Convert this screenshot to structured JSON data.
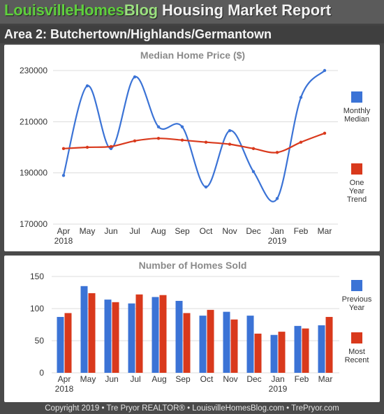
{
  "header": {
    "brand_part1": "LouisvilleHomes",
    "brand_part2": "Blog",
    "report_title": "Housing Market Report",
    "area_title": "Area 2: Butchertown/Highlands/Germantown"
  },
  "colors": {
    "blue": "#3b73d6",
    "red": "#d9391c",
    "title_gray": "#8a8a8a",
    "grid": "#dcdcdc"
  },
  "chart_data": [
    {
      "type": "line",
      "title": "Median Home Price ($)",
      "categories": [
        "Apr",
        "May",
        "Jun",
        "Jul",
        "Aug",
        "Sep",
        "Oct",
        "Nov",
        "Dec",
        "Jan",
        "Feb",
        "Mar"
      ],
      "year_labels": [
        {
          "category_index": 0,
          "label": "2018"
        },
        {
          "category_index": 9,
          "label": "2019"
        }
      ],
      "y_ticks": [
        "230000",
        "210000",
        "190000",
        "170000"
      ],
      "ylim": [
        170000,
        230000
      ],
      "grid": true,
      "legend_position": "right",
      "series": [
        {
          "name": "Monthly Median",
          "legend_lines": [
            "Monthly",
            "Median"
          ],
          "color": "#3b73d6",
          "smooth": true,
          "values": [
            189000,
            224000,
            199500,
            227500,
            208000,
            208000,
            184500,
            206500,
            190500,
            180000,
            219500,
            230000
          ]
        },
        {
          "name": "One Year Trend",
          "legend_lines": [
            "One",
            "Year",
            "Trend"
          ],
          "color": "#d9391c",
          "smooth": true,
          "values": [
            199500,
            200000,
            200300,
            202500,
            203500,
            202800,
            202000,
            201200,
            199500,
            198000,
            202000,
            205500
          ]
        }
      ]
    },
    {
      "type": "bar",
      "title": "Number of Homes Sold",
      "categories": [
        "Apr",
        "May",
        "Jun",
        "Jul",
        "Aug",
        "Sep",
        "Oct",
        "Nov",
        "Dec",
        "Jan",
        "Feb",
        "Mar"
      ],
      "year_labels": [
        {
          "category_index": 0,
          "label": "2018"
        },
        {
          "category_index": 9,
          "label": "2019"
        }
      ],
      "y_ticks": [
        "150",
        "100",
        "50",
        "0"
      ],
      "ylim": [
        0,
        150
      ],
      "grid": true,
      "legend_position": "right",
      "series": [
        {
          "name": "Previous Year",
          "legend_lines": [
            "Previous",
            "Year"
          ],
          "color": "#3b73d6",
          "values": [
            87,
            135,
            114,
            108,
            118,
            112,
            89,
            95,
            89,
            59,
            73,
            74
          ]
        },
        {
          "name": "Most Recent",
          "legend_lines": [
            "Most",
            "Recent"
          ],
          "color": "#d9391c",
          "values": [
            93,
            124,
            110,
            122,
            121,
            93,
            98,
            83,
            61,
            64,
            69,
            87
          ]
        }
      ]
    }
  ],
  "footer": {
    "text": "Copyright 2019 • Tre Pryor REALTOR® • LouisvilleHomesBlog.com • TrePryor.com"
  }
}
